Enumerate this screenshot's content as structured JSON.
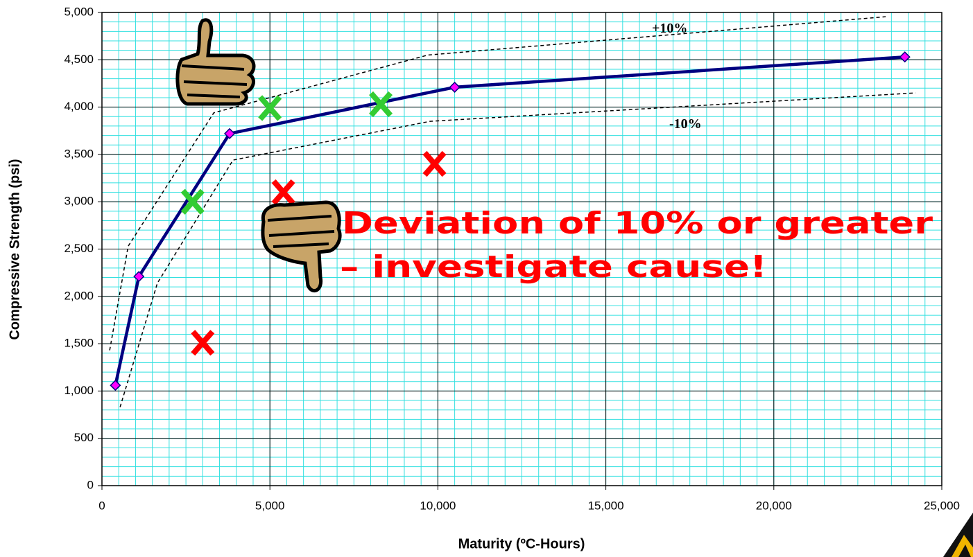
{
  "chart_data": {
    "type": "line",
    "xlabel": "Maturity (ºC-Hours)",
    "ylabel": "Compressive Strength (psi)",
    "xlim": [
      0,
      25000
    ],
    "ylim": [
      0,
      5000
    ],
    "xticks": [
      0,
      {
        "value": 5000,
        "label": "5,000"
      },
      {
        "value": 10000,
        "label": "10,000"
      },
      {
        "value": 15000,
        "label": "15,000"
      },
      {
        "value": 20000,
        "label": "20,000"
      },
      {
        "value": 25000,
        "label": "25,000"
      }
    ],
    "yticks": [
      0,
      500,
      {
        "value": 1000,
        "label": "1,000"
      },
      {
        "value": 1500,
        "label": "1,500"
      },
      {
        "value": 2000,
        "label": "2,000"
      },
      {
        "value": 2500,
        "label": "2,500"
      },
      {
        "value": 3000,
        "label": "3,000"
      },
      {
        "value": 3500,
        "label": "3,500"
      },
      {
        "value": 4000,
        "label": "4,000"
      },
      {
        "value": 4500,
        "label": "4,500"
      },
      {
        "value": 5000,
        "label": "5,000"
      }
    ],
    "grid": true,
    "minor_grid_color": "#33e0e0",
    "x_minor_step": 500,
    "y_minor_step": 100,
    "series": [
      {
        "color": "#000080",
        "style": "solid",
        "marker_color": "#ff00ff",
        "x": [
          400,
          1100,
          3800,
          10500,
          23900
        ],
        "values": [
          1060,
          2210,
          3720,
          4210,
          4530
        ]
      },
      {
        "color": "#000000",
        "style": "dashed",
        "x": [
          230,
          780,
          3330,
          9700,
          23330
        ],
        "values": [
          1430,
          2530,
          3940,
          4550,
          4955
        ]
      },
      {
        "color": "#000000",
        "style": "dashed",
        "x": [
          540,
          1650,
          3900,
          9770,
          24220
        ],
        "values": [
          830,
          2140,
          3440,
          3850,
          4150
        ]
      }
    ],
    "points": [
      {
        "color": "#33cc33",
        "x": [
          2700,
          5000,
          8300
        ],
        "values": [
          3000,
          3990,
          4030
        ]
      },
      {
        "color": "#ff0000",
        "x": [
          3000,
          5400,
          9900
        ],
        "values": [
          1510,
          3100,
          3400
        ]
      }
    ],
    "annotations": [
      "+10%",
      "-10%",
      "Deviation of 10% or greater",
      "– investigate cause!"
    ]
  }
}
